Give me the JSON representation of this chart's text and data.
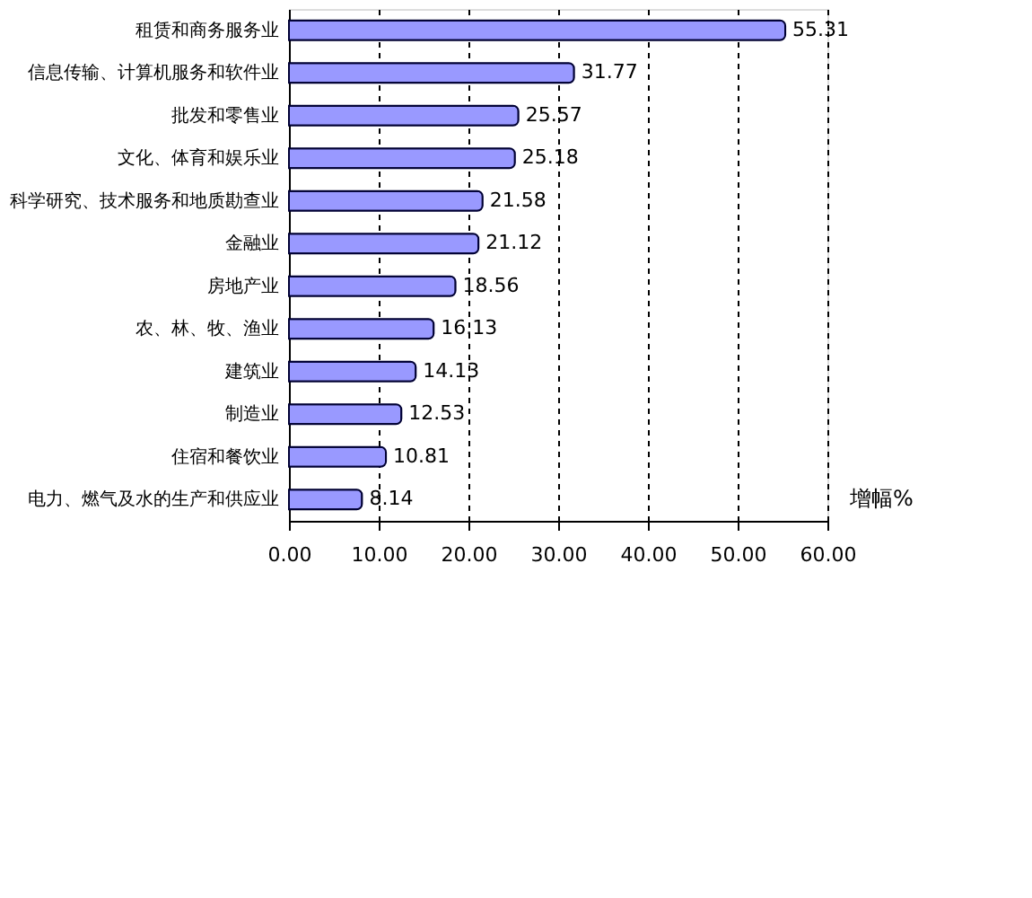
{
  "chart_data": {
    "type": "bar",
    "orientation": "horizontal",
    "xlabel": "增幅%",
    "categories": [
      "租赁和商务服务业",
      "信息传输、计算机服务和软件业",
      "批发和零售业",
      "文化、体育和娱乐业",
      "科学研究、技术服务和地质勘查业",
      "金融业",
      "房地产业",
      "农、林、牧、渔业",
      "建筑业",
      "制造业",
      "住宿和餐饮业",
      "电力、燃气及水的生产和供应业"
    ],
    "values": [
      55.31,
      31.77,
      25.57,
      25.18,
      21.58,
      21.12,
      18.56,
      16.13,
      14.13,
      12.53,
      10.81,
      8.14
    ],
    "color": "#9999ff",
    "data_labels": true,
    "grid": "x",
    "xlim": [
      0,
      60
    ],
    "xticks": [
      {
        "value": 0,
        "label": "0.00"
      },
      {
        "value": 10,
        "label": "10.00"
      },
      {
        "value": 20,
        "label": "20.00"
      },
      {
        "value": 30,
        "label": "30.00"
      },
      {
        "value": 40,
        "label": "40.00"
      },
      {
        "value": 50,
        "label": "50.00"
      },
      {
        "value": 60,
        "label": "60.00"
      }
    ]
  }
}
